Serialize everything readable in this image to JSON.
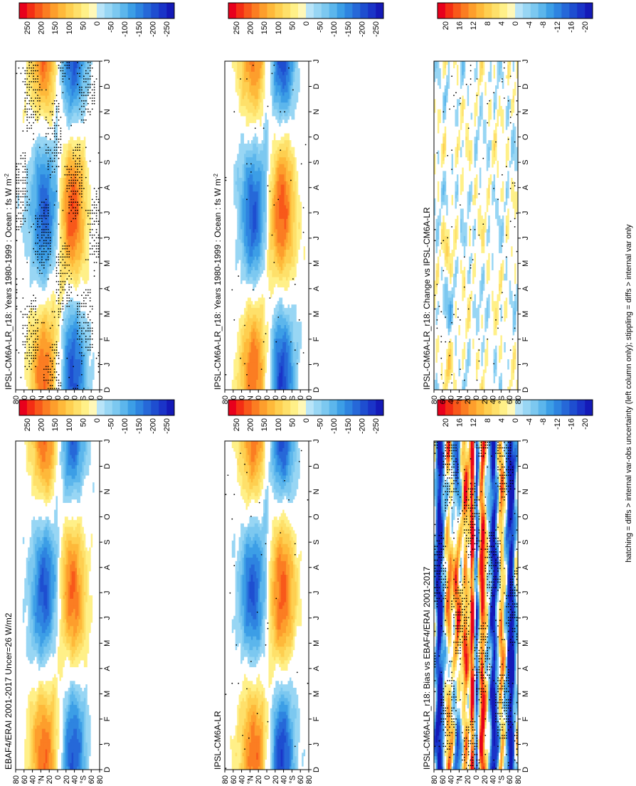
{
  "footer": "hatching = diffs > internal var-obs uncertainty (left column only); stippling = diffs > internal var only",
  "lat_ticks": [
    "80",
    "60",
    "40",
    "°N",
    "20",
    "0",
    "20",
    "40",
    "°S",
    "60",
    "80"
  ],
  "month_ticks": [
    "D",
    "J",
    "F",
    "M",
    "A",
    "M",
    "J",
    "J",
    "A",
    "S",
    "O",
    "N",
    "D",
    "J"
  ],
  "colorbars": {
    "large": [
      "250",
      "200",
      "150",
      "100",
      "50",
      "0",
      "-50",
      "-100",
      "-150",
      "-200",
      "-250"
    ],
    "small": [
      "20",
      "16",
      "12",
      "8",
      "4",
      "0",
      "-4",
      "-8",
      "-12",
      "-16",
      "-20"
    ]
  },
  "colors": {
    "warm": [
      "#e8001c",
      "#f42e14",
      "#f8581a",
      "#fb7d22",
      "#fd9e2c",
      "#feb93a",
      "#fecf50",
      "#fee06a",
      "#fff088",
      "#fff8b8"
    ],
    "cool": [
      "#b8e4f8",
      "#98d6f4",
      "#7cc8f0",
      "#5cb6ec",
      "#3c9ee6",
      "#2e84e0",
      "#2668d8",
      "#1e4ed0",
      "#1a34c8",
      "#141ab8"
    ]
  },
  "chart_data": [
    {
      "type": "heatmap",
      "title": "IPSL-CM6A-LR_r18: Years 1980-1999 : Ocean : fs W m",
      "title_superscript": "-2",
      "x": "latitude",
      "y": "month",
      "clim": [
        -250,
        250
      ],
      "profile": {
        "n": 175,
        "t": 55,
        "s": -195,
        "eq": -40
      }
    },
    {
      "type": "heatmap",
      "title": "IPSL-CM6A-LR_r18: Years 1980-1999 : Ocean : fs W m",
      "title_superscript": "-2",
      "x": "latitude",
      "y": "month",
      "clim": [
        -250,
        250
      ],
      "profile": {
        "n": 175,
        "t": 55,
        "s": -195,
        "eq": -40
      }
    },
    {
      "type": "heatmap",
      "title": "EBAF4/ERAI 2001-2017 Uncer=26 W/m2",
      "x": "latitude",
      "y": "month",
      "clim": [
        -250,
        250
      ],
      "profile": {
        "n": 180,
        "t": 50,
        "s": -180,
        "eq": -30
      }
    },
    {
      "type": "heatmap",
      "title": "IPSL-CM6A-LR",
      "x": "latitude",
      "y": "month",
      "clim": [
        -250,
        250
      ],
      "profile": {
        "n": 175,
        "t": 55,
        "s": -195,
        "eq": -40
      }
    },
    {
      "type": "heatmap",
      "title": "IPSL-CM6A-LR_r18: Bias vs EBAF4/ERAI 2001-2017",
      "x": "latitude",
      "y": "month",
      "clim": [
        -20,
        20
      ]
    },
    {
      "type": "heatmap",
      "title": "IPSL-CM6A-LR_r18: Change vs IPSL-CM6A-LR",
      "x": "latitude",
      "y": "month",
      "clim": [
        -20,
        20
      ]
    }
  ]
}
